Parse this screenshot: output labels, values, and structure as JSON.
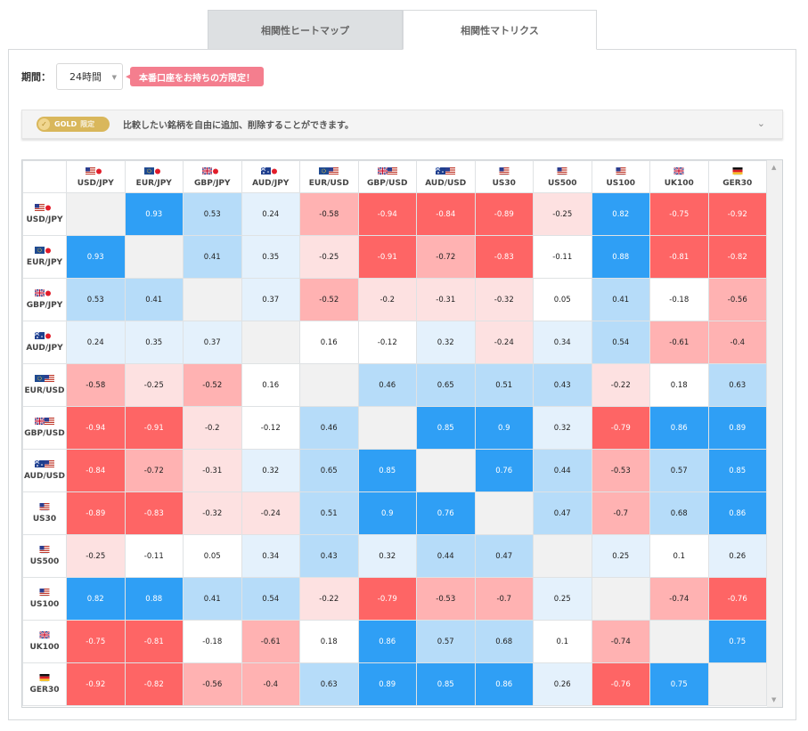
{
  "tabs": [
    {
      "label": "相関性ヒートマップ",
      "active": false
    },
    {
      "label": "相関性マトリクス",
      "active": true
    }
  ],
  "period": {
    "label": "期間：",
    "value": "24時間"
  },
  "promo_label": "本番口座をお持ちの方限定！",
  "gold": {
    "badge": "GOLD",
    "badge_suffix": "限定",
    "text": "比較したい銘柄を自由に追加、削除することができます。"
  },
  "symbols": [
    {
      "label": "USD/JPY",
      "flag": "us-jp"
    },
    {
      "label": "EUR/JPY",
      "flag": "eu-jp"
    },
    {
      "label": "GBP/JPY",
      "flag": "gb-jp"
    },
    {
      "label": "AUD/JPY",
      "flag": "au-jp"
    },
    {
      "label": "EUR/USD",
      "flag": "eu-us"
    },
    {
      "label": "GBP/USD",
      "flag": "gb-us"
    },
    {
      "label": "AUD/USD",
      "flag": "au-us"
    },
    {
      "label": "US30",
      "flag": "us"
    },
    {
      "label": "US500",
      "flag": "us"
    },
    {
      "label": "US100",
      "flag": "us"
    },
    {
      "label": "UK100",
      "flag": "gb"
    },
    {
      "label": "GER30",
      "flag": "de"
    }
  ],
  "chart_data": {
    "type": "table",
    "title": "相関性マトリクス",
    "rows": [
      "USD/JPY",
      "EUR/JPY",
      "GBP/JPY",
      "AUD/JPY",
      "EUR/USD",
      "GBP/USD",
      "AUD/USD",
      "US30",
      "US500",
      "US100",
      "UK100",
      "GER30"
    ],
    "columns": [
      "USD/JPY",
      "EUR/JPY",
      "GBP/JPY",
      "AUD/JPY",
      "EUR/USD",
      "GBP/USD",
      "AUD/USD",
      "US30",
      "US500",
      "US100",
      "UK100",
      "GER30"
    ],
    "values": [
      [
        null,
        0.93,
        0.53,
        0.24,
        -0.58,
        -0.94,
        -0.84,
        -0.89,
        -0.25,
        0.82,
        -0.75,
        -0.92
      ],
      [
        0.93,
        null,
        0.41,
        0.35,
        -0.25,
        -0.91,
        -0.72,
        -0.83,
        -0.11,
        0.88,
        -0.81,
        -0.82
      ],
      [
        0.53,
        0.41,
        null,
        0.37,
        -0.52,
        -0.2,
        -0.31,
        -0.32,
        0.05,
        0.41,
        -0.18,
        -0.56
      ],
      [
        0.24,
        0.35,
        0.37,
        null,
        0.16,
        -0.12,
        0.32,
        -0.24,
        0.34,
        0.54,
        -0.61,
        -0.4
      ],
      [
        -0.58,
        -0.25,
        -0.52,
        0.16,
        null,
        0.46,
        0.65,
        0.51,
        0.43,
        -0.22,
        0.18,
        0.63
      ],
      [
        -0.94,
        -0.91,
        -0.2,
        -0.12,
        0.46,
        null,
        0.85,
        0.9,
        0.32,
        -0.79,
        0.86,
        0.89
      ],
      [
        -0.84,
        -0.72,
        -0.31,
        0.32,
        0.65,
        0.85,
        null,
        0.76,
        0.44,
        -0.53,
        0.57,
        0.85
      ],
      [
        -0.89,
        -0.83,
        -0.32,
        -0.24,
        0.51,
        0.9,
        0.76,
        null,
        0.47,
        -0.7,
        0.68,
        0.86
      ],
      [
        -0.25,
        -0.11,
        0.05,
        0.34,
        0.43,
        0.32,
        0.44,
        0.47,
        null,
        0.25,
        0.1,
        0.26
      ],
      [
        0.82,
        0.88,
        0.41,
        0.54,
        -0.22,
        -0.79,
        -0.53,
        -0.7,
        0.25,
        null,
        -0.74,
        -0.76
      ],
      [
        -0.75,
        -0.81,
        -0.18,
        -0.61,
        0.18,
        0.86,
        0.57,
        0.68,
        0.1,
        -0.74,
        null,
        0.75
      ],
      [
        -0.92,
        -0.82,
        -0.56,
        -0.4,
        0.63,
        0.89,
        0.85,
        0.86,
        0.26,
        -0.76,
        0.75,
        null
      ]
    ]
  },
  "colors": {
    "strong_positive": "#2f9ff5",
    "medium_positive": "#b6dcf9",
    "weak_positive": "#e4f1fc",
    "neutral": "#ffffff",
    "weak_negative": "#fde1e1",
    "medium_negative": "#ffb2b2",
    "strong_negative": "#fe6565",
    "diagonal": "#f1f1f1",
    "promo": "#f47e8e",
    "gold": "#d9b75b"
  }
}
